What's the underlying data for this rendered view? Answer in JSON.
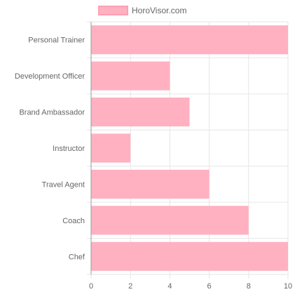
{
  "chart_data": {
    "type": "bar",
    "orientation": "horizontal",
    "categories": [
      "Personal Trainer",
      "Development Officer",
      "Brand Ambassador",
      "Instructor",
      "Travel Agent",
      "Coach",
      "Chef"
    ],
    "series": [
      {
        "name": "HoroVisor.com",
        "values": [
          10,
          4,
          5,
          2,
          6,
          8,
          10
        ]
      }
    ],
    "xlim": [
      0,
      10
    ],
    "xticks": [
      0,
      2,
      4,
      6,
      8,
      10
    ],
    "title": "",
    "xlabel": "",
    "ylabel": "",
    "grid": true,
    "legend_position": "top-center",
    "colors": {
      "bar_fill": "#ffb1c1",
      "bar_stroke": "#ff9fb3",
      "grid": "#e6e6e6",
      "axis": "#999999",
      "text": "#666666"
    }
  }
}
